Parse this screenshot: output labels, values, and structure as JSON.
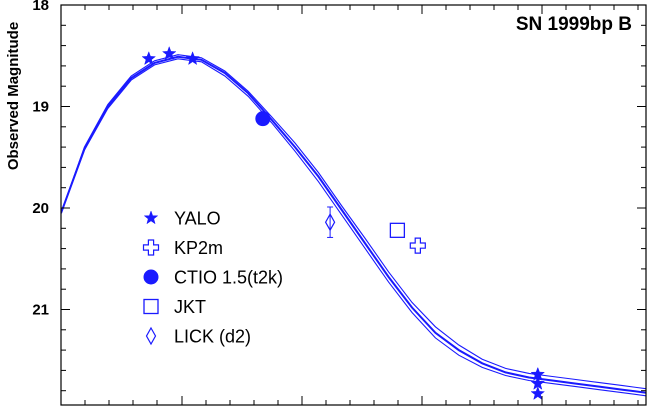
{
  "chart_data": {
    "type": "scatter",
    "title": "SN 1999bp  B",
    "xlabel": "",
    "ylabel": "Observed Magnitude",
    "x_range": [
      0,
      100
    ],
    "ylim": [
      22.0,
      18.0
    ],
    "y_inverted": true,
    "yticks": [
      18,
      19,
      20,
      21
    ],
    "ytick_labels": [
      "18",
      "19",
      "20",
      "21"
    ],
    "grid": false,
    "legend_position": "left-middle",
    "color": "#1a1aff",
    "curves": [
      {
        "x": [
          0,
          4,
          8,
          12,
          16,
          20,
          24,
          28,
          32,
          36,
          40,
          44,
          48,
          52,
          56,
          60,
          64,
          68,
          72,
          76,
          80,
          84,
          88,
          92,
          96,
          100
        ],
        "y": [
          20.05,
          19.4,
          18.98,
          18.7,
          18.55,
          18.49,
          18.52,
          18.65,
          18.85,
          19.1,
          19.36,
          19.65,
          19.98,
          20.3,
          20.63,
          20.93,
          21.17,
          21.35,
          21.49,
          21.58,
          21.63,
          21.66,
          21.69,
          21.72,
          21.75,
          21.78
        ]
      },
      {
        "x": [
          0,
          4,
          8,
          12,
          16,
          20,
          24,
          28,
          32,
          36,
          40,
          44,
          48,
          52,
          56,
          60,
          64,
          68,
          72,
          76,
          80,
          84,
          88,
          92,
          96,
          100
        ],
        "y": [
          20.05,
          19.42,
          19.0,
          18.72,
          18.57,
          18.51,
          18.54,
          18.67,
          18.87,
          19.13,
          19.4,
          19.69,
          20.02,
          20.35,
          20.68,
          20.98,
          21.23,
          21.4,
          21.53,
          21.62,
          21.67,
          21.7,
          21.73,
          21.76,
          21.79,
          21.82
        ]
      },
      {
        "x": [
          0,
          4,
          8,
          12,
          16,
          20,
          24,
          28,
          32,
          36,
          40,
          44,
          48,
          52,
          56,
          60,
          64,
          68,
          72,
          76,
          80,
          84,
          88,
          92,
          96,
          100
        ],
        "y": [
          20.05,
          19.43,
          19.02,
          18.74,
          18.59,
          18.53,
          18.56,
          18.7,
          18.9,
          19.16,
          19.44,
          19.74,
          20.07,
          20.4,
          20.73,
          21.03,
          21.28,
          21.45,
          21.57,
          21.65,
          21.7,
          21.73,
          21.76,
          21.79,
          21.82,
          21.85
        ]
      }
    ],
    "series": [
      {
        "name": "YALO",
        "marker": "star-filled",
        "points": [
          {
            "x": 15.0,
            "y": 18.53
          },
          {
            "x": 18.5,
            "y": 18.48
          },
          {
            "x": 22.5,
            "y": 18.53
          },
          {
            "x": 81.5,
            "y": 21.64
          },
          {
            "x": 81.5,
            "y": 21.73
          },
          {
            "x": 81.5,
            "y": 21.83
          }
        ]
      },
      {
        "name": "KP2m",
        "marker": "cross-open",
        "points": [
          {
            "x": 61.0,
            "y": 20.37
          }
        ]
      },
      {
        "name": "CTIO 1.5(t2k)",
        "marker": "circle-filled",
        "points": [
          {
            "x": 34.5,
            "y": 19.12
          }
        ]
      },
      {
        "name": "JKT",
        "marker": "square-open",
        "points": [
          {
            "x": 57.5,
            "y": 20.22
          }
        ]
      },
      {
        "name": "LICK (d2)",
        "marker": "diamond-open",
        "points": [
          {
            "x": 46.0,
            "y": 20.14,
            "err": 0.15
          }
        ]
      }
    ]
  }
}
